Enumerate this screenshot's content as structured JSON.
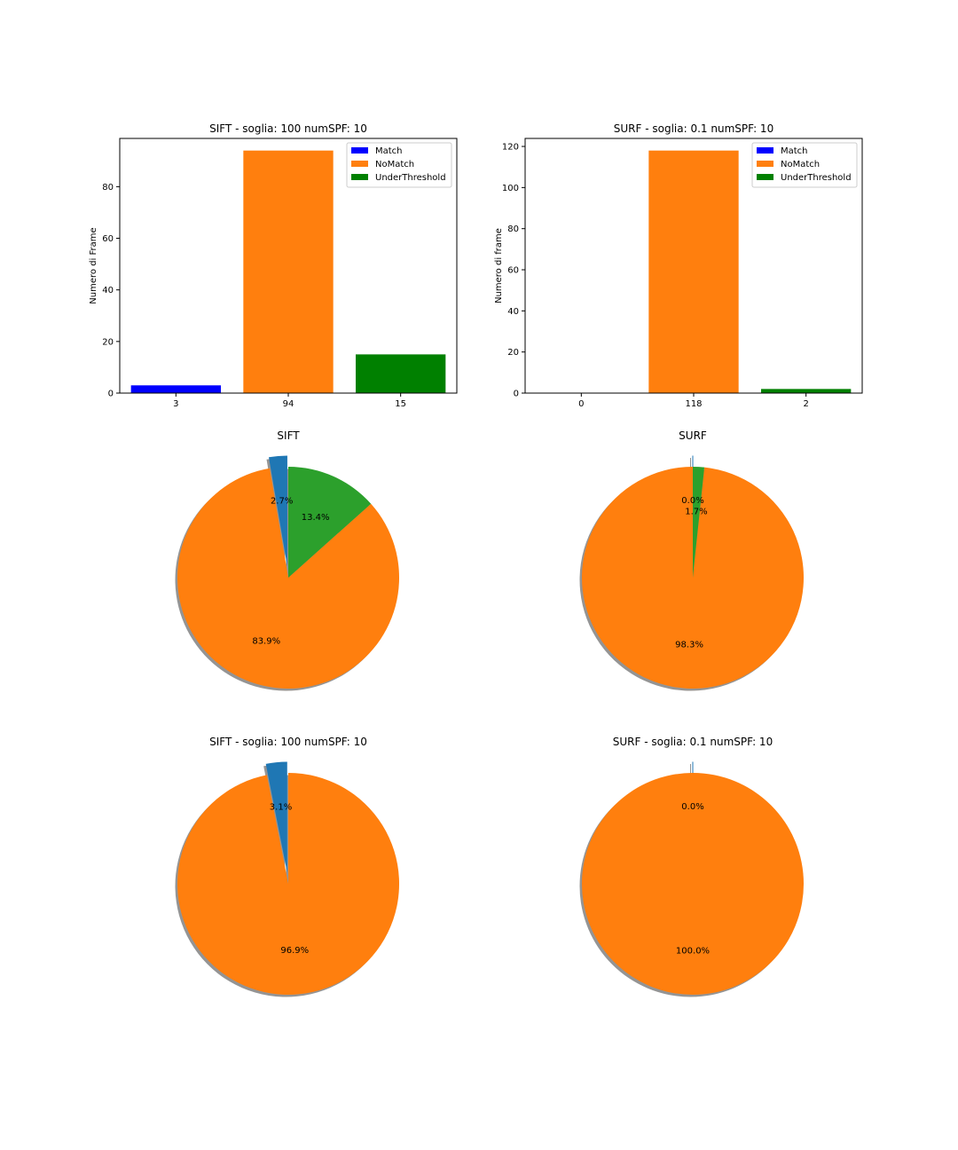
{
  "chart_data": [
    {
      "type": "bar",
      "title": "SIFT - soglia: 100 numSPF: 10",
      "ylabel": "Numero di Frame",
      "categories": [
        "3",
        "94",
        "15"
      ],
      "values": [
        3,
        94,
        15
      ],
      "colors": [
        "#0000ff",
        "#ff7f0e",
        "#008000"
      ],
      "ylim": [
        0,
        98.7
      ],
      "yticks": [
        0,
        20,
        40,
        60,
        80
      ],
      "legend": [
        "Match",
        "NoMatch",
        "UnderThreshold"
      ],
      "legend_position": "top-right",
      "grid": false
    },
    {
      "type": "bar",
      "title": "SURF - soglia: 0.1 numSPF: 10",
      "ylabel": "Numero di frame",
      "categories": [
        "0",
        "118",
        "2"
      ],
      "values": [
        0,
        118,
        2
      ],
      "colors": [
        "#0000ff",
        "#ff7f0e",
        "#008000"
      ],
      "ylim": [
        0,
        123.9
      ],
      "yticks": [
        0,
        20,
        40,
        60,
        80,
        100,
        120
      ],
      "legend": [
        "Match",
        "NoMatch",
        "UnderThreshold"
      ],
      "legend_position": "top-right",
      "grid": false
    },
    {
      "type": "pie",
      "title": "SIFT",
      "values": [
        3,
        94,
        15
      ],
      "labels": [
        "2.7%",
        "83.9%",
        "13.4%"
      ],
      "colors": [
        "#1f77b4",
        "#ff7f0e",
        "#2ca02c"
      ],
      "explode": [
        0.1,
        0,
        0
      ],
      "shadow": true,
      "start_angle": 90
    },
    {
      "type": "pie",
      "title": "SURF",
      "values": [
        0,
        118,
        2
      ],
      "labels": [
        "0.0%",
        "98.3%",
        "1.7%"
      ],
      "colors": [
        "#1f77b4",
        "#ff7f0e",
        "#2ca02c"
      ],
      "explode": [
        0.1,
        0,
        0
      ],
      "shadow": true,
      "start_angle": 90
    },
    {
      "type": "pie",
      "title": "SIFT - soglia: 100 numSPF: 10",
      "values": [
        3,
        94
      ],
      "labels": [
        "3.1%",
        "96.9%"
      ],
      "colors": [
        "#1f77b4",
        "#ff7f0e"
      ],
      "explode": [
        0.1,
        0
      ],
      "shadow": true,
      "start_angle": 90
    },
    {
      "type": "pie",
      "title": "SURF - soglia: 0.1 numSPF: 10",
      "values": [
        0,
        118
      ],
      "labels": [
        "0.0%",
        "100.0%"
      ],
      "colors": [
        "#1f77b4",
        "#ff7f0e"
      ],
      "explode": [
        0.1,
        0
      ],
      "shadow": true,
      "start_angle": 90
    }
  ]
}
